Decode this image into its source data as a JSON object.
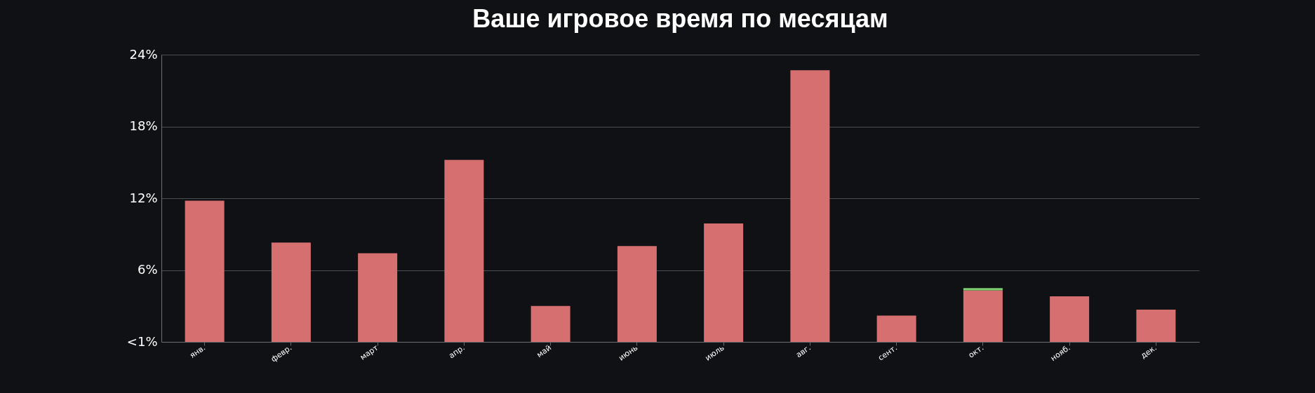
{
  "chart_data": {
    "type": "bar",
    "title": "Ваше игровое время по месяцам",
    "categories": [
      "янв.",
      "февр.",
      "март",
      "апр.",
      "май",
      "июнь",
      "июль",
      "авг.",
      "сент.",
      "окт.",
      "нояб.",
      "дек."
    ],
    "stacked": true,
    "series": [
      {
        "color": "#d66f6f",
        "values": [
          11.8,
          8.3,
          7.4,
          15.2,
          3.0,
          8.0,
          9.9,
          22.7,
          2.2,
          4.3,
          3.8,
          2.7
        ]
      },
      {
        "color": "#7ccf6f",
        "values": [
          null,
          null,
          null,
          null,
          null,
          null,
          null,
          null,
          null,
          0.2,
          null,
          null
        ]
      }
    ],
    "ylim": [
      0,
      24
    ],
    "yticks": [
      {
        "value": 0,
        "label": "<1%"
      },
      {
        "value": 6,
        "label": "6%"
      },
      {
        "value": 12,
        "label": "12%"
      },
      {
        "value": 18,
        "label": "18%"
      },
      {
        "value": 24,
        "label": "24%"
      }
    ],
    "grid": "y",
    "legend": false
  }
}
